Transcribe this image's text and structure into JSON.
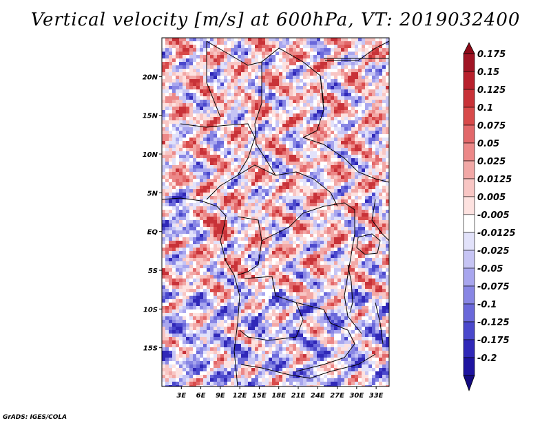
{
  "title": "Vertical velocity [m/s] at 600hPa, VT: 2019032400",
  "credit": "GrADS: IGES/COLA",
  "map": {
    "variable": "Vertical velocity",
    "units": "m/s",
    "level": "600hPa",
    "valid_time": "2019032400",
    "lon_range": [
      0,
      35
    ],
    "lat_range": [
      -20,
      25
    ],
    "lon_ticks": [
      {
        "value": 3,
        "label": "3E"
      },
      {
        "value": 6,
        "label": "6E"
      },
      {
        "value": 9,
        "label": "9E"
      },
      {
        "value": 12,
        "label": "12E"
      },
      {
        "value": 15,
        "label": "15E"
      },
      {
        "value": 18,
        "label": "18E"
      },
      {
        "value": 21,
        "label": "21E"
      },
      {
        "value": 24,
        "label": "24E"
      },
      {
        "value": 27,
        "label": "27E"
      },
      {
        "value": 30,
        "label": "30E"
      },
      {
        "value": 33,
        "label": "33E"
      }
    ],
    "lat_ticks": [
      {
        "value": 20,
        "label": "20N"
      },
      {
        "value": 15,
        "label": "15N"
      },
      {
        "value": 10,
        "label": "10N"
      },
      {
        "value": 5,
        "label": "5N"
      },
      {
        "value": 0,
        "label": "EQ"
      },
      {
        "value": -5,
        "label": "5S"
      },
      {
        "value": -10,
        "label": "10S"
      },
      {
        "value": -15,
        "label": "15S"
      }
    ]
  },
  "colorbar": {
    "levels": [
      {
        "label": "0.175",
        "color": "#a01424"
      },
      {
        "label": "0.15",
        "color": "#b8202c"
      },
      {
        "label": "0.125",
        "color": "#c83238"
      },
      {
        "label": "0.1",
        "color": "#d84a4a"
      },
      {
        "label": "0.075",
        "color": "#e2686a"
      },
      {
        "label": "0.05",
        "color": "#ec8888"
      },
      {
        "label": "0.025",
        "color": "#f2a8a6"
      },
      {
        "label": "0.0125",
        "color": "#f8c6c4"
      },
      {
        "label": "0.005",
        "color": "#fde2e0"
      },
      {
        "label": "-0.005",
        "color": "#ffffff"
      },
      {
        "label": "-0.0125",
        "color": "#e2e2fa"
      },
      {
        "label": "-0.025",
        "color": "#c6c4f4"
      },
      {
        "label": "-0.05",
        "color": "#a8a6ee"
      },
      {
        "label": "-0.075",
        "color": "#8886e4"
      },
      {
        "label": "-0.1",
        "color": "#6a68da"
      },
      {
        "label": "-0.125",
        "color": "#4a48cc"
      },
      {
        "label": "-0.175",
        "color": "#3028b8"
      },
      {
        "label": "-0.2",
        "color": "#1e14a0"
      },
      {
        "label": "",
        "color": "#140a80"
      }
    ],
    "top_cap_color": "#8c0a18"
  }
}
